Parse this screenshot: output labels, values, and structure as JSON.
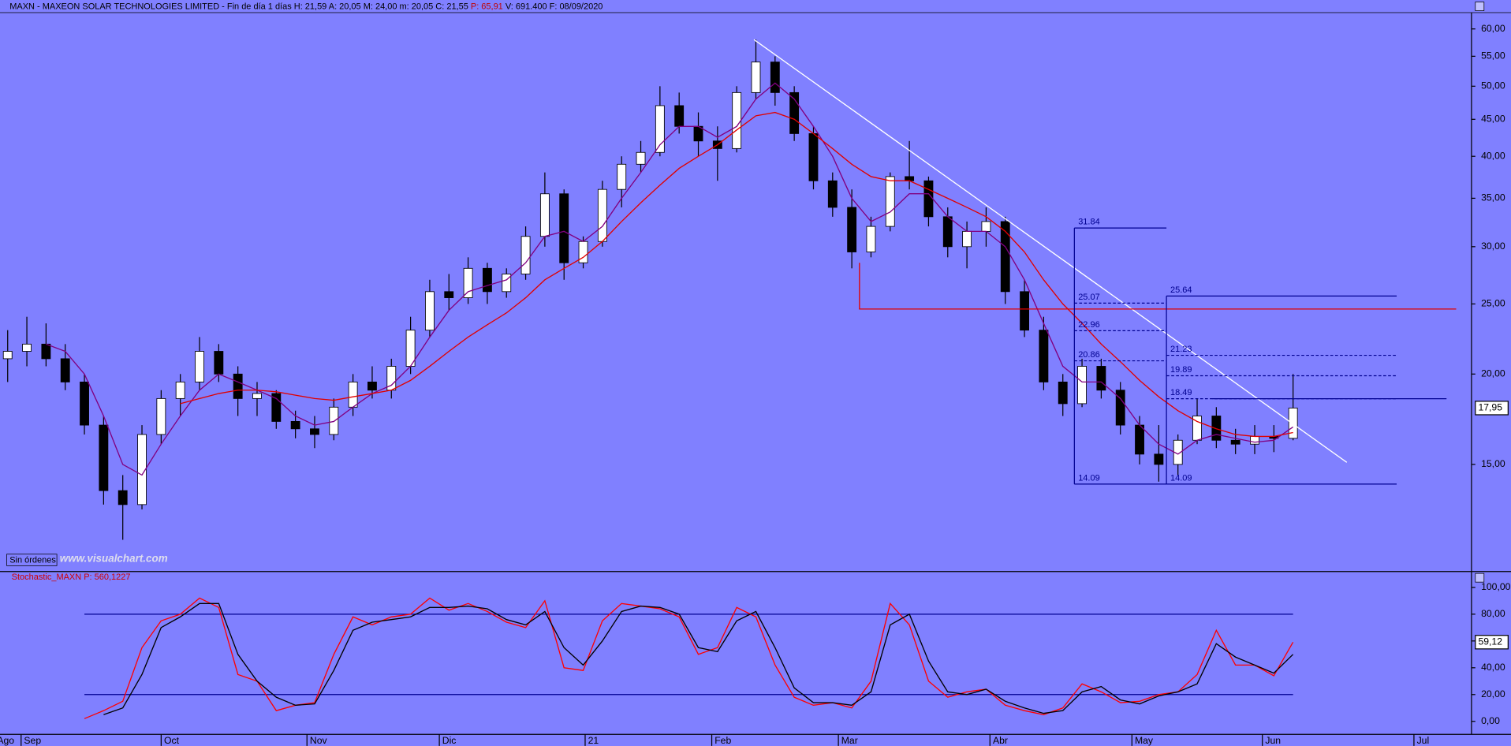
{
  "header": [
    {
      "text": "MAXN - MAXEON SOLAR TECHNOLOGIES LIMITED - Fin de día 1 días  H: 21,59  A: 20,05  M: 24,00  m: 20,05  C: 21,55  ",
      "color": "#000000"
    },
    {
      "text": "P: 65,91",
      "color": "#c00000"
    },
    {
      "text": "  V: 691.400  F: 08/09/2020",
      "color": "#000000"
    }
  ],
  "orders_button": "Sin órdenes",
  "watermark": "www.visualchart.com",
  "chart_data": [
    {
      "type": "candlestick",
      "log_scale": true,
      "up_color": "#ffffff",
      "down_color": "#000000",
      "xlim": [
        -0.4,
        76.3
      ],
      "ylim": [
        10.7,
        63.2
      ],
      "yticks": [
        {
          "value": 15,
          "label": "15,00"
        },
        {
          "value": 20,
          "label": "20,00"
        },
        {
          "value": 25,
          "label": "25,00"
        },
        {
          "value": 30,
          "label": "30,00"
        },
        {
          "value": 35,
          "label": "35,00"
        },
        {
          "value": 40,
          "label": "40,00"
        },
        {
          "value": 45,
          "label": "45,00"
        },
        {
          "value": 50,
          "label": "50,00"
        },
        {
          "value": 55,
          "label": "55,00"
        },
        {
          "value": 60,
          "label": "60,00"
        }
      ],
      "xticks": [
        {
          "value": -0.7,
          "label": "Ago"
        },
        {
          "value": 0.7,
          "label": "Sep"
        },
        {
          "value": 8.0,
          "label": "Oct"
        },
        {
          "value": 15.6,
          "label": "Nov"
        },
        {
          "value": 22.5,
          "label": "Dic"
        },
        {
          "value": 30.1,
          "label": "21"
        },
        {
          "value": 36.7,
          "label": "Feb"
        },
        {
          "value": 43.3,
          "label": "Mar"
        },
        {
          "value": 51.2,
          "label": "Abr"
        },
        {
          "value": 58.6,
          "label": "May"
        },
        {
          "value": 65.4,
          "label": "Jun"
        },
        {
          "value": 73.3,
          "label": "Jul"
        }
      ],
      "open": [
        21,
        21.5,
        22,
        21,
        19.5,
        17,
        13.8,
        13.2,
        16.5,
        18.5,
        19.5,
        21.5,
        20,
        18.5,
        18.8,
        17.2,
        16.8,
        16.5,
        18,
        19.5,
        19,
        20.5,
        23,
        26,
        25.5,
        28,
        26,
        27.5,
        31,
        35.5,
        28.5,
        30.5,
        36,
        39,
        40.5,
        47,
        44,
        42,
        41,
        49,
        54,
        49,
        43,
        37,
        34,
        29.5,
        32,
        37.5,
        37,
        33,
        30,
        31.5,
        32.5,
        26,
        23,
        19.5,
        18.2,
        20.5,
        19,
        17,
        15.5,
        15,
        16.2,
        17.5,
        16.2,
        16,
        16.4,
        16.3
      ],
      "high": [
        23,
        24,
        23.5,
        22,
        20,
        17.5,
        14.5,
        17,
        19,
        20,
        22.5,
        22,
        20.5,
        19.5,
        19,
        17.8,
        17.5,
        18.5,
        20,
        20.5,
        21,
        24,
        27,
        27.5,
        29,
        28.5,
        28,
        32,
        38,
        36,
        31,
        37,
        40,
        42,
        50,
        49,
        46,
        44,
        50,
        58,
        55,
        50,
        44,
        38,
        36,
        33,
        38,
        42,
        37.5,
        34,
        32.5,
        34,
        33,
        27,
        24,
        20,
        21,
        21,
        19.5,
        17.5,
        17,
        16.5,
        18.5,
        18,
        16.8,
        17,
        17,
        20
      ],
      "low": [
        19.5,
        20.5,
        20.5,
        19,
        16.5,
        13.2,
        11.8,
        13,
        16,
        17.5,
        19,
        19.5,
        17.5,
        17.5,
        16.8,
        16.3,
        15.8,
        16.2,
        17.5,
        18.5,
        18.5,
        20,
        22.5,
        24.5,
        25,
        25,
        25.5,
        27,
        30,
        27,
        28,
        30,
        34,
        38,
        40,
        43,
        40,
        37,
        40.5,
        48,
        47,
        42,
        36,
        33,
        28,
        29,
        31.5,
        36,
        32,
        29,
        28,
        30,
        25,
        22.5,
        19,
        17.5,
        18,
        18.5,
        16.5,
        15,
        14.2,
        14.5,
        16,
        15.8,
        15.5,
        15.5,
        15.6,
        16.2
      ],
      "close": [
        21.5,
        22,
        21,
        19.5,
        17,
        13.8,
        13.2,
        16.5,
        18.5,
        19.5,
        21.5,
        20,
        18.5,
        18.8,
        17.2,
        16.8,
        16.5,
        18,
        19.5,
        19,
        20.5,
        23,
        26,
        25.5,
        28,
        26,
        27.5,
        31,
        35.5,
        28.5,
        30.5,
        36,
        39,
        40.5,
        47,
        44,
        42,
        41,
        49,
        54,
        49,
        43,
        37,
        34,
        29.5,
        32,
        37.5,
        37,
        33,
        30,
        31.5,
        32.5,
        26,
        23,
        19.5,
        18.2,
        20.5,
        19,
        17,
        15.5,
        15,
        16.2,
        17.5,
        16.2,
        16,
        16.4,
        16.3,
        17.95
      ],
      "series": [
        {
          "color": "#800080",
          "values": [
            null,
            null,
            22,
            21.5,
            20,
            17.5,
            15,
            14.5,
            16,
            17.5,
            19,
            20,
            19.5,
            19,
            18.5,
            17.5,
            17,
            17.2,
            18,
            18.8,
            19.3,
            20.5,
            22.5,
            24.5,
            26,
            26.5,
            27,
            28.5,
            31,
            31.5,
            30.5,
            32,
            35,
            38,
            41.5,
            44,
            44,
            42.5,
            44,
            48,
            50.5,
            48,
            44,
            40,
            35,
            32.5,
            33.5,
            35.5,
            35.5,
            33,
            31.5,
            31.5,
            30,
            27,
            23.5,
            20.5,
            19.5,
            19.5,
            18.5,
            17,
            16,
            15.5,
            16.2,
            16.5,
            16.3,
            16.1,
            16.2,
            16.9
          ]
        },
        {
          "color": "#e00000",
          "values": [
            null,
            null,
            null,
            null,
            null,
            null,
            null,
            null,
            null,
            18.2,
            18.5,
            18.8,
            19,
            19,
            18.9,
            18.7,
            18.5,
            18.4,
            18.6,
            18.8,
            19,
            19.6,
            20.5,
            21.5,
            22.5,
            23.4,
            24.3,
            25.5,
            27,
            28,
            29,
            30.5,
            32.5,
            34.5,
            36.5,
            38.5,
            40,
            41.5,
            43.5,
            45.5,
            46,
            45,
            43,
            41,
            39,
            37.5,
            37,
            37,
            36,
            35,
            34,
            33,
            31.5,
            29.5,
            27,
            25,
            23.5,
            22,
            20.8,
            19.6,
            18.6,
            17.8,
            17.2,
            16.8,
            16.5,
            16.4,
            16.4,
            16.6
          ]
        }
      ],
      "last_price": {
        "value": 17.95,
        "label": "17,95"
      },
      "lines": [
        {
          "color": "#ffffff",
          "x": [
            38.9,
            69.8
          ],
          "y": [
            58,
            15.1
          ]
        },
        {
          "color": "#e00000",
          "x": [
            44.4,
            44.4,
            75.5
          ],
          "y": [
            28.5,
            24.6,
            24.6
          ]
        },
        {
          "color": "#000090",
          "x": [
            62.8,
            75
          ],
          "y": [
            18.49,
            18.49
          ]
        }
      ],
      "fibonacci": [
        {
          "color": "#000090",
          "x": [
            55.6,
            60.4
          ],
          "levels": [
            31.84,
            25.07,
            22.96,
            20.86,
            14.09
          ]
        },
        {
          "color": "#000090",
          "x": [
            60.4,
            72.4
          ],
          "levels": [
            25.64,
            21.23,
            19.89,
            18.49,
            14.09
          ]
        }
      ]
    },
    {
      "type": "line",
      "title": "Stochastic_MAXN  P: 560,1227",
      "xlim": [
        -0.4,
        76.3
      ],
      "ylim": [
        -9.7,
        109.7
      ],
      "yticks": [
        {
          "value": 0,
          "label": "0,00"
        },
        {
          "value": 20,
          "label": "20,00"
        },
        {
          "value": 40,
          "label": "40,00"
        },
        {
          "value": 60,
          "label": "60,00"
        },
        {
          "value": 80,
          "label": "80,00"
        },
        {
          "value": 100,
          "label": "100,00"
        }
      ],
      "levels": [
        20,
        80
      ],
      "level_color": "#000090",
      "series": [
        {
          "color": "#ff0000",
          "values": [
            null,
            null,
            null,
            null,
            2,
            8,
            15,
            55,
            75,
            80,
            92,
            85,
            35,
            30,
            8,
            12,
            14,
            50,
            78,
            72,
            78,
            80,
            92,
            83,
            88,
            82,
            74,
            70,
            90,
            40,
            38,
            75,
            88,
            86,
            84,
            78,
            50,
            55,
            85,
            78,
            42,
            18,
            12,
            14,
            10,
            30,
            88,
            72,
            30,
            18,
            22,
            24,
            12,
            8,
            5,
            10,
            28,
            22,
            14,
            15,
            20,
            22,
            35,
            68,
            42,
            42,
            34,
            59.12
          ]
        },
        {
          "color": "#000000",
          "values": [
            null,
            null,
            null,
            null,
            null,
            5,
            10,
            35,
            70,
            78,
            88,
            88,
            50,
            30,
            18,
            12,
            13,
            38,
            68,
            74,
            76,
            78,
            85,
            85,
            86,
            84,
            76,
            72,
            82,
            55,
            42,
            60,
            82,
            86,
            85,
            80,
            55,
            52,
            75,
            82,
            55,
            25,
            14,
            14,
            12,
            22,
            72,
            80,
            45,
            22,
            20,
            24,
            15,
            10,
            6,
            8,
            22,
            26,
            16,
            13,
            19,
            22,
            28,
            58,
            48,
            42,
            36,
            50
          ]
        }
      ],
      "last_value": {
        "value": 59.12,
        "label": "59,12"
      }
    }
  ]
}
